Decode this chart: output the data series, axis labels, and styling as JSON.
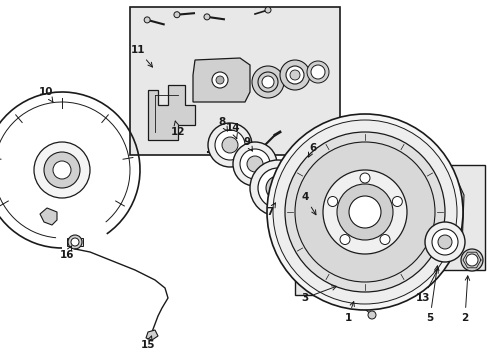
{
  "bg_color": "#ffffff",
  "lc": "#1a1a1a",
  "figsize": [
    4.89,
    3.6
  ],
  "dpi": 100,
  "box_fill": "#e8e8e8",
  "white": "#ffffff",
  "lgray": "#d0d0d0",
  "mgray": "#b0b0b0"
}
